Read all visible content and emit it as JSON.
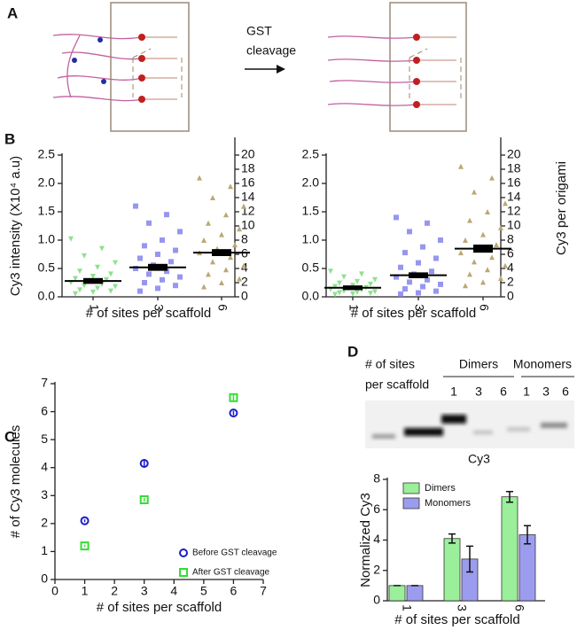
{
  "panel_labels": [
    "A",
    "B",
    "C",
    "D"
  ],
  "diagram": {
    "arrow_text": [
      "GST",
      "cleavage"
    ]
  },
  "gel": {
    "row_label": [
      "# of sites",
      "per scaffold"
    ],
    "groups": [
      {
        "name": "Dimers",
        "lanes": [
          "1",
          "3",
          "6"
        ]
      },
      {
        "name": "Monomers",
        "lanes": [
          "1",
          "3",
          "6"
        ]
      }
    ],
    "caption": "Cy3"
  },
  "chart_data": [
    {
      "type": "dotplot",
      "categories": [
        "1",
        "3",
        "6"
      ],
      "ylabel": "Cy3 intensity (X10⁴ a.u)",
      "xlabel": "# of sites per scaffold",
      "ylim": [
        0,
        2.5
      ],
      "yticks": [
        {
          "value": 0,
          "label": "0.0"
        },
        0.5,
        {
          "value": 1,
          "label": "1.0"
        },
        1.5,
        {
          "value": 2,
          "label": "2.0"
        },
        2.5
      ],
      "y2lim": [
        0,
        20
      ],
      "y2ticks": [
        0,
        2,
        4,
        6,
        8,
        10,
        12,
        14,
        16,
        18,
        20
      ],
      "groups": [
        {
          "color": "#8fe08f",
          "marker": "triangle-down",
          "mean": 0.28,
          "sem": 0.02,
          "values": [
            1.02,
            0.85,
            0.72,
            0.6,
            0.52,
            0.45,
            0.4,
            0.36,
            0.32,
            0.3,
            0.28,
            0.25,
            0.22,
            0.2,
            0.18,
            0.15,
            0.12,
            0.1,
            0.08,
            0.05
          ]
        },
        {
          "color": "#9696f0",
          "marker": "square",
          "mean": 0.52,
          "sem": 0.03,
          "values": [
            1.6,
            1.45,
            1.3,
            1.15,
            1.0,
            0.9,
            0.82,
            0.75,
            0.68,
            0.62,
            0.56,
            0.5,
            0.45,
            0.4,
            0.35,
            0.3,
            0.25,
            0.2,
            0.15,
            0.1
          ]
        },
        {
          "color": "#bba874",
          "marker": "triangle-up",
          "mean": 0.78,
          "sem": 0.03,
          "values": [
            2.1,
            1.95,
            1.75,
            1.6,
            1.45,
            1.3,
            1.2,
            1.1,
            1.0,
            0.92,
            0.85,
            0.78,
            0.7,
            0.62,
            0.55,
            0.48,
            0.4,
            0.32,
            0.25,
            0.18
          ]
        }
      ]
    },
    {
      "type": "dotplot",
      "categories": [
        "1",
        "3",
        "6"
      ],
      "y2label": "Cy3 per origami",
      "xlabel": "# of sites per scaffold",
      "ylim": [
        0,
        2.5
      ],
      "yticks": [
        {
          "value": 0,
          "label": "0.0"
        },
        0.5,
        {
          "value": 1,
          "label": "1.0"
        },
        1.5,
        {
          "value": 2,
          "label": "2.0"
        },
        2.5
      ],
      "y2lim": [
        0,
        20
      ],
      "y2ticks": [
        0,
        2,
        4,
        6,
        8,
        10,
        12,
        14,
        16,
        18,
        20
      ],
      "groups": [
        {
          "color": "#8fe08f",
          "marker": "triangle-down",
          "mean": 0.16,
          "sem": 0.01,
          "values": [
            0.45,
            0.4,
            0.35,
            0.3,
            0.27,
            0.24,
            0.22,
            0.2,
            0.18,
            0.16,
            0.15,
            0.13,
            0.12,
            0.1,
            0.09,
            0.08,
            0.07,
            0.06,
            0.05,
            0.04
          ]
        },
        {
          "color": "#9696f0",
          "marker": "square",
          "mean": 0.38,
          "sem": 0.02,
          "values": [
            1.4,
            1.3,
            1.15,
            1.0,
            0.88,
            0.78,
            0.68,
            0.6,
            0.52,
            0.45,
            0.4,
            0.35,
            0.3,
            0.26,
            0.22,
            0.18,
            0.14,
            0.1,
            0.07,
            0.05
          ]
        },
        {
          "color": "#bba874",
          "marker": "triangle-up",
          "mean": 0.85,
          "sem": 0.04,
          "values": [
            2.3,
            2.1,
            1.85,
            1.65,
            1.5,
            1.35,
            1.22,
            1.1,
            1.0,
            0.92,
            0.85,
            0.78,
            0.7,
            0.62,
            0.55,
            0.48,
            0.4,
            0.33,
            0.26,
            0.2
          ]
        }
      ]
    },
    {
      "type": "scatter",
      "xlabel": "# of sites per scaffold",
      "ylabel": "# of Cy3 molecules",
      "xlim": [
        0,
        7
      ],
      "xticks": [
        0,
        1,
        2,
        3,
        4,
        5,
        6,
        7
      ],
      "ylim": [
        0,
        7
      ],
      "yticks": [
        0,
        1,
        2,
        3,
        4,
        5,
        6,
        7
      ],
      "legend": "lower right",
      "series": [
        {
          "name": "Before GST cleavage",
          "color": "#1c1ccc",
          "marker": "circle",
          "x": [
            1,
            3,
            6
          ],
          "values": [
            2.1,
            4.15,
            5.95
          ],
          "errors": [
            0.05,
            0.15,
            0.08
          ]
        },
        {
          "name": "After GST cleavage",
          "color": "#33dd33",
          "marker": "square",
          "x": [
            1,
            3,
            6
          ],
          "values": [
            1.2,
            2.85,
            6.5
          ],
          "errors": [
            0.04,
            0.06,
            0.1
          ]
        }
      ]
    },
    {
      "type": "bar",
      "categories": [
        "1",
        "3",
        "6"
      ],
      "ylabel": "Normalized Cy3",
      "xlabel": "# of sites per scaffold",
      "ylim": [
        0,
        8
      ],
      "yticks": [
        0,
        2,
        4,
        6,
        8
      ],
      "legend": "upper left",
      "series": [
        {
          "name": "Dimers",
          "color": "#9bef9b",
          "values": [
            1,
            4.1,
            6.85
          ],
          "errors": [
            0,
            0.3,
            0.35
          ]
        },
        {
          "name": "Monomers",
          "color": "#9c9cef",
          "values": [
            1,
            2.75,
            4.35
          ],
          "errors": [
            0,
            0.85,
            0.6
          ]
        }
      ]
    }
  ]
}
